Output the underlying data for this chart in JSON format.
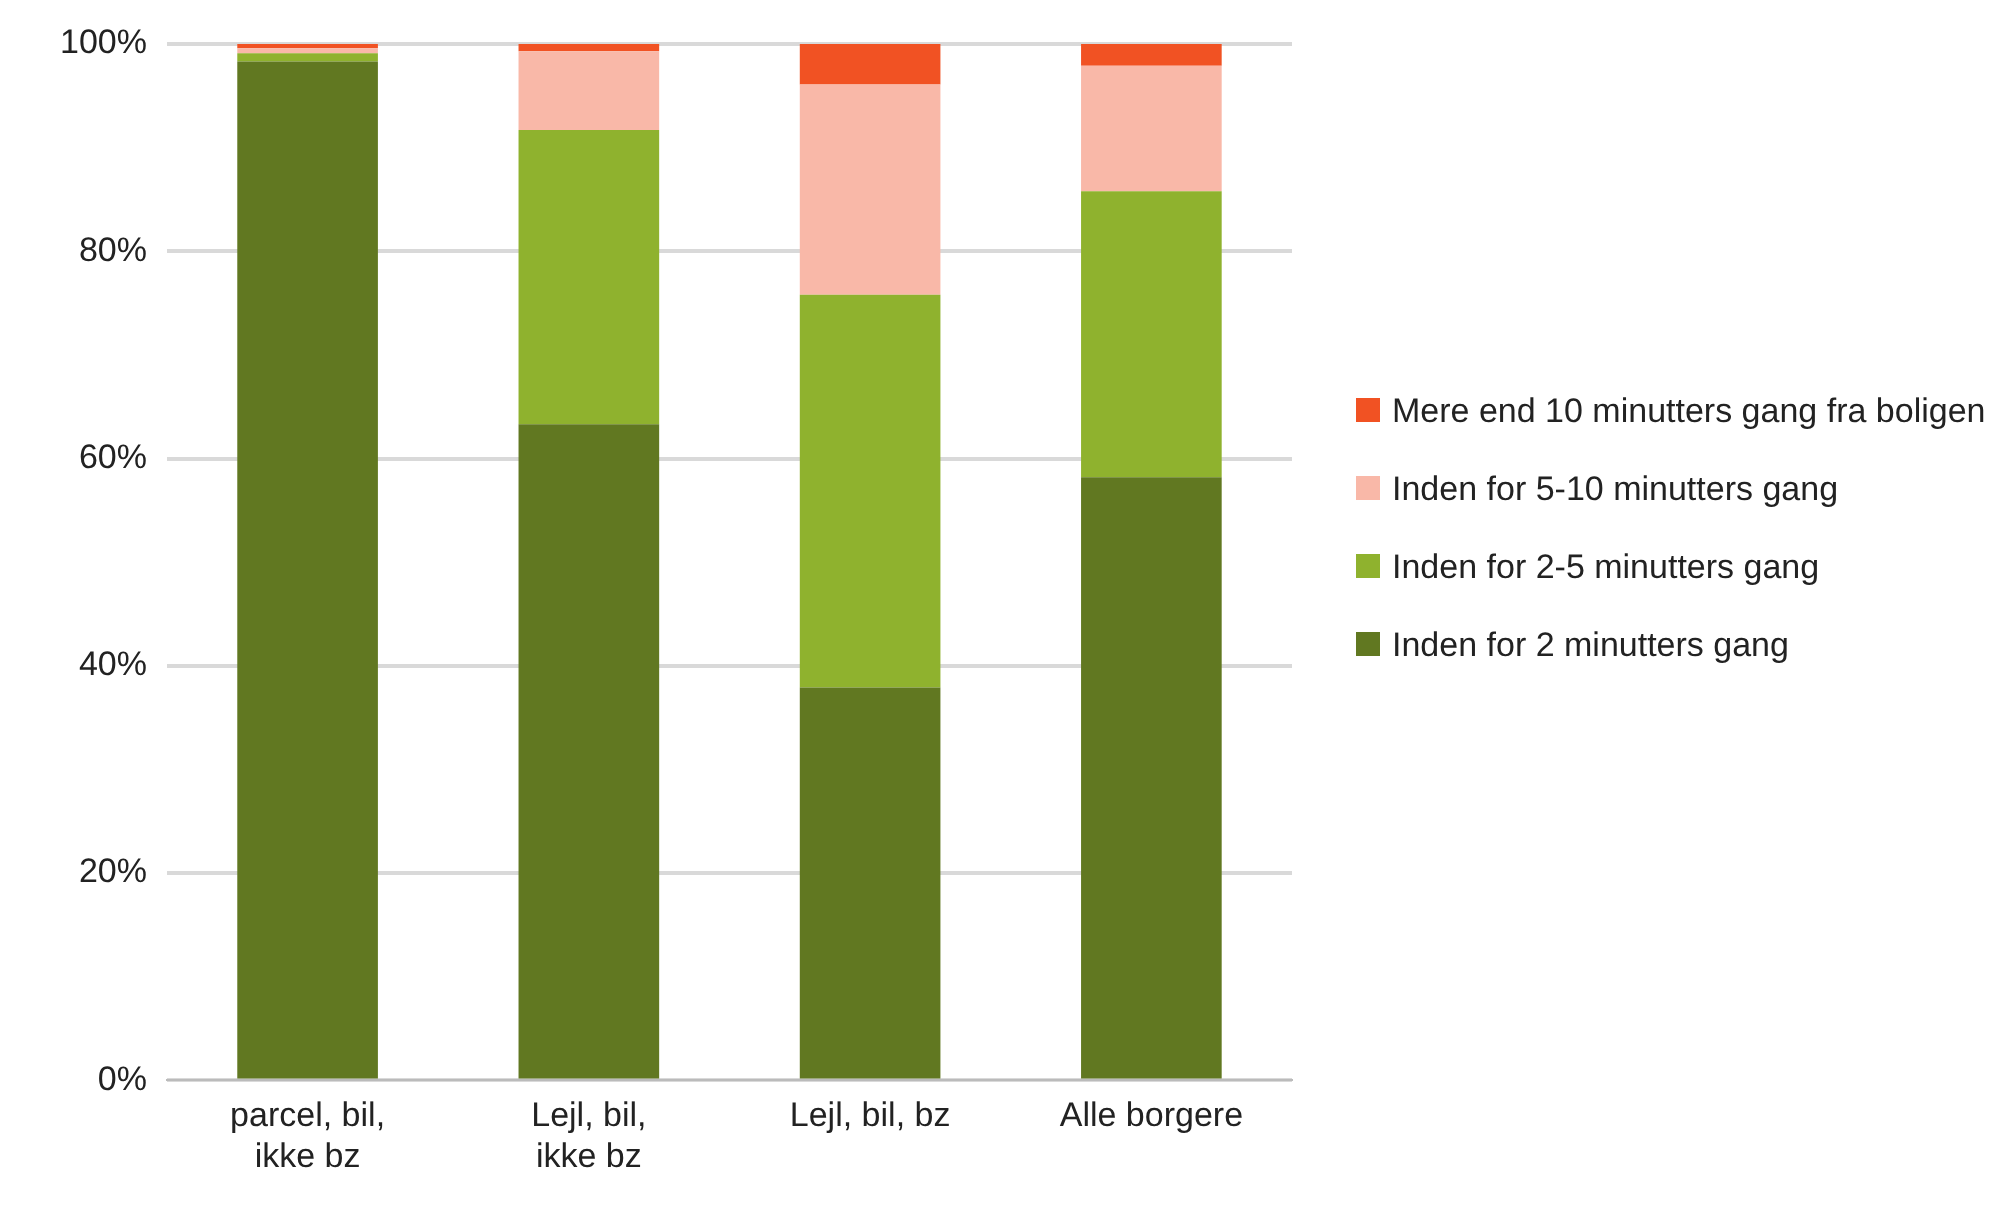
{
  "chart_data": {
    "type": "bar",
    "stacked": true,
    "categories": [
      "parcel, bil, ikke bz",
      "Lejl, bil, ikke bz",
      "Lejl, bil, bz",
      "Alle borgere"
    ],
    "series": [
      {
        "name": "Inden for 2 minutters gang",
        "color": "#617821",
        "values": [
          98.3,
          63.3,
          37.9,
          58.2
        ]
      },
      {
        "name": "Inden for 2-5 minutters gang",
        "color": "#8fb22e",
        "values": [
          0.8,
          28.4,
          37.9,
          27.6
        ]
      },
      {
        "name": "Inden for 5-10 minutters gang",
        "color": "#f9b8a8",
        "values": [
          0.5,
          7.6,
          20.3,
          12.1
        ]
      },
      {
        "name": "Mere end 10 minutters gang fra boligen",
        "color": "#f15223",
        "values": [
          0.4,
          0.7,
          3.9,
          2.1
        ]
      }
    ],
    "ylim": [
      0,
      100
    ],
    "yticks": [
      {
        "value": 0,
        "label": "0%"
      },
      {
        "value": 20,
        "label": "20%"
      },
      {
        "value": 40,
        "label": "40%"
      },
      {
        "value": 60,
        "label": "60%"
      },
      {
        "value": 80,
        "label": "80%"
      },
      {
        "value": 100,
        "label": "100%"
      }
    ],
    "grid": "y",
    "legend": "right"
  }
}
